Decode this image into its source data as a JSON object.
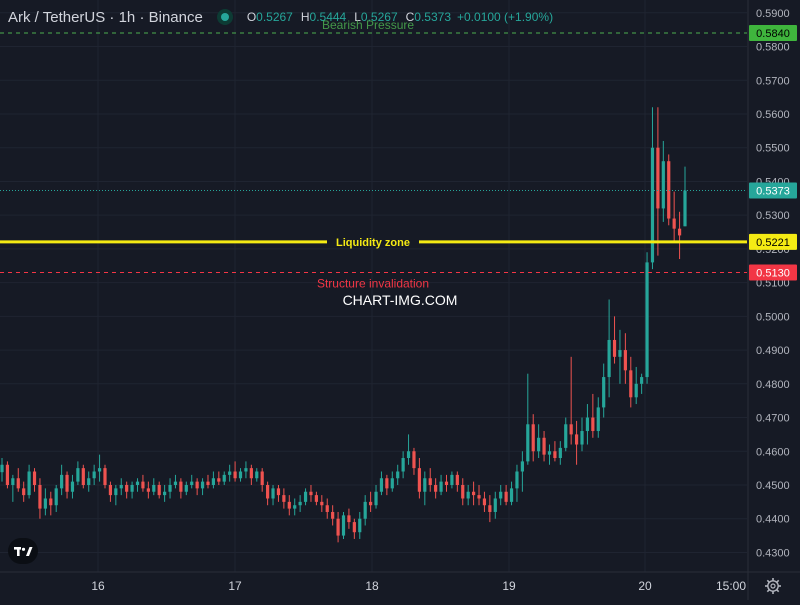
{
  "header": {
    "title": "Ark / TetherUS · 1h · Binance",
    "open_label": "O",
    "open": "0.5267",
    "high_label": "H",
    "high": "0.5444",
    "low_label": "L",
    "low": "0.5267",
    "close_label": "C",
    "close": "0.5373",
    "change": "+0.0100 (+1.90%)",
    "bullish_text": "Bearish Pressure"
  },
  "watermark": "CHART-IMG.COM",
  "colors": {
    "background": "#161a25",
    "up": "#26a69a",
    "down": "#ef5350",
    "liquidity": "#f5eb14",
    "invalidation": "#f23645",
    "bearish_level": "#4caf50"
  },
  "icons": {
    "logo": "tradingview-logo-icon",
    "settings": "gear-icon"
  },
  "chart_data": {
    "type": "candlestick",
    "x_ticks": [
      "16",
      "17",
      "18",
      "19",
      "20",
      "15:00"
    ],
    "y_ticks": [
      "0.5900",
      "0.5800",
      "0.5700",
      "0.5600",
      "0.5500",
      "0.5400",
      "0.5300",
      "0.5200",
      "0.5100",
      "0.5000",
      "0.4900",
      "0.4800",
      "0.4700",
      "0.4600",
      "0.4500",
      "0.4400",
      "0.4300"
    ],
    "ylim": [
      0.4245,
      0.5935
    ],
    "price_labels": {
      "bearish": "0.5840",
      "last": "0.5373",
      "liquidity": "0.5221",
      "invalidation": "0.5130"
    },
    "levels": [
      {
        "name": "bearish",
        "value": 0.584,
        "label": ""
      },
      {
        "name": "last",
        "value": 0.5373,
        "label": ""
      },
      {
        "name": "liquidity",
        "value": 0.5221,
        "label": "Liquidity zone"
      },
      {
        "name": "invalidation",
        "value": 0.513,
        "label": "Structure invalidation"
      }
    ],
    "candles_ohlc": [
      [
        0.4538,
        0.458,
        0.451,
        0.456
      ],
      [
        0.456,
        0.457,
        0.449,
        0.45
      ],
      [
        0.45,
        0.453,
        0.445,
        0.452
      ],
      [
        0.452,
        0.455,
        0.448,
        0.449
      ],
      [
        0.449,
        0.451,
        0.445,
        0.447
      ],
      [
        0.447,
        0.456,
        0.446,
        0.454
      ],
      [
        0.454,
        0.455,
        0.448,
        0.45
      ],
      [
        0.45,
        0.452,
        0.44,
        0.443
      ],
      [
        0.443,
        0.449,
        0.441,
        0.446
      ],
      [
        0.446,
        0.448,
        0.441,
        0.444
      ],
      [
        0.444,
        0.45,
        0.442,
        0.449
      ],
      [
        0.449,
        0.456,
        0.447,
        0.453
      ],
      [
        0.453,
        0.454,
        0.446,
        0.448
      ],
      [
        0.448,
        0.453,
        0.446,
        0.451
      ],
      [
        0.451,
        0.457,
        0.45,
        0.455
      ],
      [
        0.455,
        0.456,
        0.449,
        0.45
      ],
      [
        0.45,
        0.454,
        0.448,
        0.452
      ],
      [
        0.452,
        0.456,
        0.45,
        0.454
      ],
      [
        0.454,
        0.459,
        0.451,
        0.455
      ],
      [
        0.455,
        0.456,
        0.449,
        0.45
      ],
      [
        0.45,
        0.451,
        0.445,
        0.447
      ],
      [
        0.447,
        0.45,
        0.444,
        0.449
      ],
      [
        0.449,
        0.452,
        0.447,
        0.45
      ],
      [
        0.45,
        0.451,
        0.446,
        0.448
      ],
      [
        0.448,
        0.451,
        0.446,
        0.45
      ],
      [
        0.45,
        0.452,
        0.448,
        0.451
      ],
      [
        0.451,
        0.453,
        0.448,
        0.449
      ],
      [
        0.449,
        0.451,
        0.446,
        0.448
      ],
      [
        0.448,
        0.452,
        0.447,
        0.45
      ],
      [
        0.45,
        0.451,
        0.446,
        0.447
      ],
      [
        0.447,
        0.45,
        0.445,
        0.448
      ],
      [
        0.448,
        0.452,
        0.446,
        0.45
      ],
      [
        0.45,
        0.453,
        0.449,
        0.451
      ],
      [
        0.451,
        0.452,
        0.446,
        0.448
      ],
      [
        0.448,
        0.451,
        0.447,
        0.45
      ],
      [
        0.45,
        0.453,
        0.449,
        0.451
      ],
      [
        0.451,
        0.452,
        0.447,
        0.449
      ],
      [
        0.449,
        0.452,
        0.447,
        0.451
      ],
      [
        0.451,
        0.453,
        0.449,
        0.45
      ],
      [
        0.45,
        0.454,
        0.449,
        0.452
      ],
      [
        0.452,
        0.454,
        0.45,
        0.451
      ],
      [
        0.451,
        0.454,
        0.45,
        0.453
      ],
      [
        0.453,
        0.456,
        0.451,
        0.454
      ],
      [
        0.454,
        0.457,
        0.451,
        0.452
      ],
      [
        0.452,
        0.455,
        0.451,
        0.454
      ],
      [
        0.454,
        0.457,
        0.452,
        0.455
      ],
      [
        0.455,
        0.456,
        0.45,
        0.452
      ],
      [
        0.452,
        0.455,
        0.451,
        0.454
      ],
      [
        0.454,
        0.455,
        0.448,
        0.45
      ],
      [
        0.45,
        0.451,
        0.444,
        0.446
      ],
      [
        0.446,
        0.45,
        0.444,
        0.449
      ],
      [
        0.449,
        0.45,
        0.445,
        0.447
      ],
      [
        0.447,
        0.449,
        0.443,
        0.445
      ],
      [
        0.445,
        0.447,
        0.441,
        0.443
      ],
      [
        0.443,
        0.446,
        0.441,
        0.444
      ],
      [
        0.444,
        0.447,
        0.442,
        0.445
      ],
      [
        0.445,
        0.449,
        0.444,
        0.448
      ],
      [
        0.448,
        0.45,
        0.445,
        0.447
      ],
      [
        0.447,
        0.448,
        0.444,
        0.445
      ],
      [
        0.445,
        0.447,
        0.442,
        0.444
      ],
      [
        0.444,
        0.446,
        0.44,
        0.442
      ],
      [
        0.442,
        0.444,
        0.438,
        0.44
      ],
      [
        0.44,
        0.442,
        0.433,
        0.435
      ],
      [
        0.435,
        0.442,
        0.434,
        0.441
      ],
      [
        0.441,
        0.443,
        0.437,
        0.439
      ],
      [
        0.439,
        0.44,
        0.434,
        0.436
      ],
      [
        0.436,
        0.442,
        0.434,
        0.44
      ],
      [
        0.44,
        0.447,
        0.438,
        0.445
      ],
      [
        0.445,
        0.448,
        0.442,
        0.444
      ],
      [
        0.444,
        0.45,
        0.443,
        0.448
      ],
      [
        0.448,
        0.454,
        0.447,
        0.452
      ],
      [
        0.452,
        0.453,
        0.447,
        0.449
      ],
      [
        0.449,
        0.454,
        0.448,
        0.452
      ],
      [
        0.452,
        0.456,
        0.45,
        0.454
      ],
      [
        0.454,
        0.46,
        0.452,
        0.458
      ],
      [
        0.458,
        0.465,
        0.456,
        0.46
      ],
      [
        0.46,
        0.461,
        0.453,
        0.455
      ],
      [
        0.455,
        0.458,
        0.446,
        0.448
      ],
      [
        0.448,
        0.454,
        0.444,
        0.452
      ],
      [
        0.452,
        0.455,
        0.448,
        0.45
      ],
      [
        0.45,
        0.452,
        0.446,
        0.448
      ],
      [
        0.448,
        0.453,
        0.447,
        0.451
      ],
      [
        0.451,
        0.453,
        0.448,
        0.45
      ],
      [
        0.45,
        0.454,
        0.449,
        0.453
      ],
      [
        0.453,
        0.454,
        0.448,
        0.45
      ],
      [
        0.45,
        0.452,
        0.444,
        0.446
      ],
      [
        0.446,
        0.45,
        0.444,
        0.448
      ],
      [
        0.448,
        0.451,
        0.444,
        0.447
      ],
      [
        0.447,
        0.45,
        0.444,
        0.446
      ],
      [
        0.446,
        0.448,
        0.442,
        0.444
      ],
      [
        0.444,
        0.447,
        0.439,
        0.442
      ],
      [
        0.442,
        0.448,
        0.44,
        0.446
      ],
      [
        0.446,
        0.45,
        0.444,
        0.448
      ],
      [
        0.448,
        0.45,
        0.444,
        0.445
      ],
      [
        0.445,
        0.451,
        0.444,
        0.449
      ],
      [
        0.449,
        0.456,
        0.445,
        0.454
      ],
      [
        0.454,
        0.46,
        0.448,
        0.457
      ],
      [
        0.457,
        0.483,
        0.456,
        0.468
      ],
      [
        0.468,
        0.471,
        0.457,
        0.46
      ],
      [
        0.46,
        0.468,
        0.458,
        0.464
      ],
      [
        0.464,
        0.466,
        0.457,
        0.459
      ],
      [
        0.459,
        0.462,
        0.456,
        0.46
      ],
      [
        0.46,
        0.463,
        0.457,
        0.458
      ],
      [
        0.458,
        0.463,
        0.456,
        0.461
      ],
      [
        0.461,
        0.47,
        0.46,
        0.468
      ],
      [
        0.468,
        0.488,
        0.462,
        0.465
      ],
      [
        0.465,
        0.469,
        0.456,
        0.462
      ],
      [
        0.462,
        0.47,
        0.46,
        0.466
      ],
      [
        0.466,
        0.474,
        0.462,
        0.47
      ],
      [
        0.47,
        0.477,
        0.464,
        0.466
      ],
      [
        0.466,
        0.476,
        0.464,
        0.473
      ],
      [
        0.473,
        0.486,
        0.47,
        0.482
      ],
      [
        0.482,
        0.505,
        0.476,
        0.493
      ],
      [
        0.493,
        0.5,
        0.486,
        0.488
      ],
      [
        0.488,
        0.496,
        0.48,
        0.49
      ],
      [
        0.49,
        0.495,
        0.48,
        0.484
      ],
      [
        0.484,
        0.488,
        0.473,
        0.476
      ],
      [
        0.476,
        0.485,
        0.474,
        0.48
      ],
      [
        0.48,
        0.483,
        0.477,
        0.482
      ],
      [
        0.482,
        0.519,
        0.48,
        0.516
      ],
      [
        0.516,
        0.562,
        0.514,
        0.55
      ],
      [
        0.55,
        0.562,
        0.518,
        0.532
      ],
      [
        0.532,
        0.552,
        0.528,
        0.546
      ],
      [
        0.546,
        0.548,
        0.527,
        0.529
      ],
      [
        0.529,
        0.537,
        0.522,
        0.526
      ],
      [
        0.526,
        0.531,
        0.517,
        0.524
      ],
      [
        0.5267,
        0.5444,
        0.5267,
        0.5373
      ]
    ]
  }
}
